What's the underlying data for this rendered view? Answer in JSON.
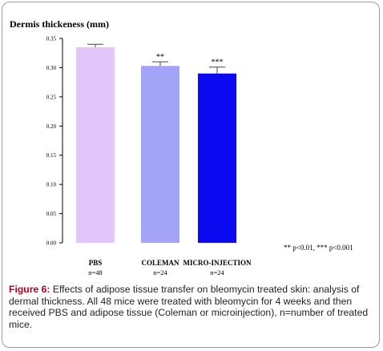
{
  "chart_data": {
    "type": "bar",
    "title": "Dermis thickeness (mm)",
    "categories": [
      "PBS",
      "COLEMAN",
      "MICRO-INJECTION"
    ],
    "sample_sizes": [
      "n=48",
      "n=24",
      "n=24"
    ],
    "values": [
      0.335,
      0.303,
      0.29
    ],
    "errors": [
      0.005,
      0.007,
      0.011
    ],
    "significance": [
      "",
      "**",
      "***"
    ],
    "colors": [
      "#e3c6fb",
      "#a3a3f8",
      "#0b09f0"
    ],
    "ylim": [
      0,
      0.35
    ],
    "yticks": [
      "0.00",
      "0.05",
      "0.10",
      "0.15",
      "0.20",
      "0.25",
      "0.30",
      "0.35"
    ],
    "xlabel": "",
    "ylabel": "",
    "grid": false,
    "note": "** p<0.01,  *** p<0.001"
  },
  "caption": {
    "label": "Figure 6:",
    "text": " Effects of adipose tissue transfer on bleomycin treated skin: analysis of dermal thickness. All 48 mice were treated with bleomycin for 4 weeks and then received PBS and adipose tissue (Coleman or microinjection), n=number of treated mice."
  }
}
